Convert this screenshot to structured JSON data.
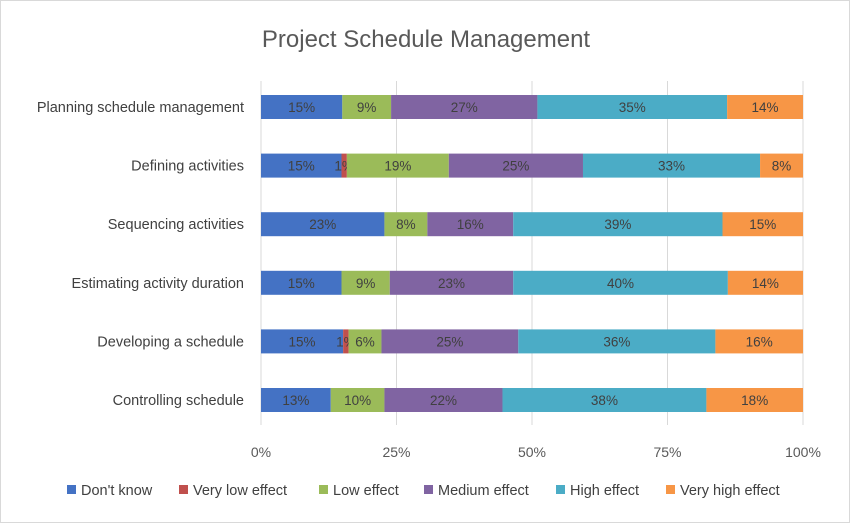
{
  "chart_data": {
    "type": "bar",
    "orientation": "horizontal",
    "stacked": "percent",
    "title": "Project Schedule Management",
    "categories": [
      "Planning schedule management",
      "Defining activities",
      "Sequencing activities",
      "Estimating activity duration",
      "Developing a schedule",
      "Controlling schedule"
    ],
    "series": [
      {
        "name": "Don't know",
        "color": "#4472C4",
        "values": [
          15,
          15,
          23,
          15,
          15,
          13
        ],
        "labels": [
          "15%",
          "15%",
          "23%",
          "15%",
          "15%",
          "13%"
        ]
      },
      {
        "name": "Very low effect",
        "color": "#C0504D",
        "values": [
          0,
          1,
          0,
          0,
          1,
          0
        ],
        "labels": [
          "",
          "1%",
          "",
          "",
          "1%",
          ""
        ]
      },
      {
        "name": "Low effect",
        "color": "#9BBB59",
        "values": [
          9,
          19,
          8,
          9,
          6,
          10
        ],
        "labels": [
          "9%",
          "19%",
          "8%",
          "9%",
          "6%",
          "10%"
        ]
      },
      {
        "name": "Medium effect",
        "color": "#8064A2",
        "values": [
          27,
          25,
          16,
          23,
          25,
          22
        ],
        "labels": [
          "27%",
          "25%",
          "16%",
          "23%",
          "25%",
          "22%"
        ]
      },
      {
        "name": "High effect",
        "color": "#4BACC6",
        "values": [
          35,
          33,
          39,
          40,
          36,
          38
        ],
        "labels": [
          "35%",
          "33%",
          "39%",
          "40%",
          "36%",
          "38%"
        ]
      },
      {
        "name": "Very high effect",
        "color": "#F79646",
        "values": [
          14,
          8,
          15,
          14,
          16,
          18
        ],
        "labels": [
          "14%",
          "8%",
          "15%",
          "14%",
          "16%",
          "18%"
        ]
      }
    ],
    "xlim": [
      0,
      100
    ],
    "xticks": [
      "0%",
      "25%",
      "50%",
      "75%",
      "100%"
    ],
    "grid": true,
    "legend": "bottom"
  }
}
